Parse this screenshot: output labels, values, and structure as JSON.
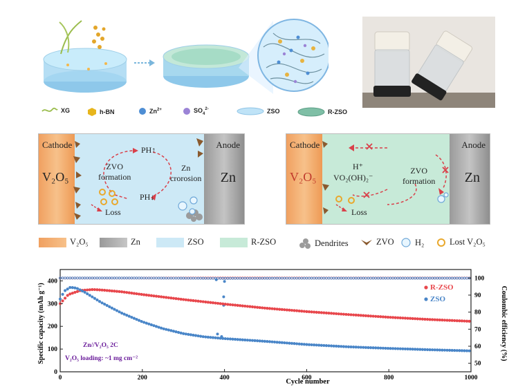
{
  "legend_top": {
    "xg": "XG",
    "hbn": "h-BN",
    "zn": "Zn",
    "zn_sup": "2+",
    "so4": "SO",
    "so4_sub": "4",
    "so4_sup": "2-",
    "zso": "ZSO",
    "rzso": "R-ZSO"
  },
  "panel_left": {
    "cathode": "Cathode",
    "anode": "Anode",
    "v2o5": "V₂O₅",
    "zn": "Zn",
    "ph_up": "PH↑",
    "ph_down": "PH↓",
    "zvo_formation": "ZVO\nformation",
    "zn_corrosion": "Zn\ncrorosion",
    "loss": "Loss"
  },
  "panel_right": {
    "cathode": "Cathode",
    "anode": "Anode",
    "v2o5": "V₂O₅",
    "zn": "Zn",
    "h_plus": "H⁺",
    "vo2oh2": "VO₂(OH)₂⁻",
    "zvo_formation": "ZVO\nformation",
    "loss": "Loss"
  },
  "legend_mid": {
    "v2o5": "V₂O₅",
    "zn": "Zn",
    "zso": "ZSO",
    "rzso": "R-ZSO",
    "dendrites": "Dendrites",
    "zvo": "ZVO",
    "h2": "H₂",
    "lost_v2o5": "Lost V₂O₅"
  },
  "chart_data": {
    "type": "scatter",
    "xlabel": "Cycle number",
    "ylabel": "Specific capacity (mAh g⁻¹)",
    "y2label": "Coulombic efficiency (%)",
    "xlim": [
      0,
      1000
    ],
    "ylim": [
      0,
      450
    ],
    "y2lim": [
      45,
      105
    ],
    "xticks": [
      "0",
      "200",
      "400",
      "600",
      "800",
      "1000"
    ],
    "yticks": [
      "0",
      "100",
      "200",
      "300",
      "400"
    ],
    "y2ticks": [
      "50",
      "60",
      "70",
      "80",
      "90",
      "100"
    ],
    "annotation_line1": "Zn//V₂O₅  2C",
    "annotation_line2": "V₂O₅ loading: ~1 mg cm⁻²",
    "colors": {
      "rzso": "#e8474c",
      "zso": "#4a86c8"
    },
    "series": [
      {
        "name": "R-ZSO",
        "axis": "capacity",
        "x": [
          0,
          20,
          50,
          80,
          100,
          150,
          200,
          300,
          400,
          500,
          600,
          700,
          800,
          900,
          1000
        ],
        "values": [
          300,
          340,
          358,
          362,
          360,
          352,
          340,
          318,
          298,
          280,
          265,
          252,
          240,
          230,
          222
        ]
      },
      {
        "name": "ZSO",
        "axis": "capacity",
        "x": [
          0,
          10,
          25,
          40,
          60,
          100,
          150,
          200,
          250,
          300,
          350,
          400,
          500,
          600,
          700,
          800,
          900,
          1000
        ],
        "values": [
          320,
          355,
          372,
          368,
          350,
          305,
          258,
          220,
          190,
          168,
          154,
          146,
          134,
          120,
          110,
          103,
          97,
          92
        ]
      },
      {
        "name": "R-ZSO CE",
        "axis": "efficiency",
        "x": [
          0,
          200,
          400,
          600,
          800,
          1000
        ],
        "values": [
          100,
          100,
          100,
          100,
          100,
          100
        ]
      },
      {
        "name": "ZSO CE",
        "axis": "efficiency",
        "x": [
          0,
          200,
          400,
          600,
          800,
          1000
        ],
        "values": [
          100,
          100,
          99.8,
          99.9,
          99.9,
          99.9
        ]
      }
    ],
    "outliers_capacity": [
      {
        "series": "ZSO",
        "x": 383,
        "y": 166
      },
      {
        "series": "ZSO",
        "x": 393,
        "y": 155
      }
    ],
    "outliers_efficiency": [
      {
        "series": "ZSO",
        "x": 398,
        "y": 89
      },
      {
        "series": "ZSO",
        "x": 398,
        "y": 84
      },
      {
        "series": "ZSO",
        "x": 380,
        "y": 99
      },
      {
        "series": "ZSO",
        "x": 400,
        "y": 98
      }
    ],
    "legend_position": "right"
  }
}
